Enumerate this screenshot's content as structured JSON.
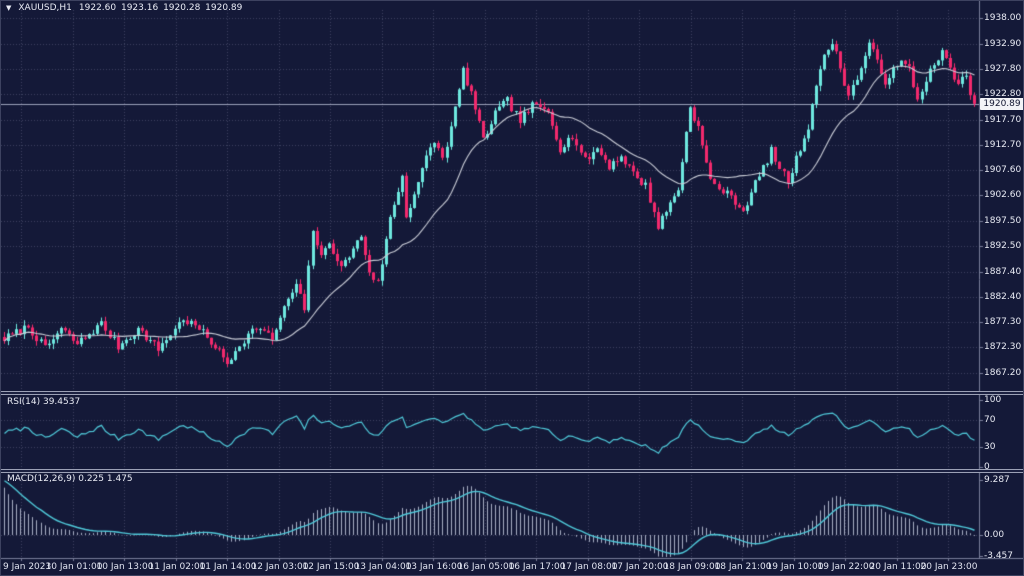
{
  "header": {
    "symbol": "XAUUSD,H1",
    "open": "1922.60",
    "high": "1923.16",
    "low": "1920.28",
    "close": "1920.89"
  },
  "indicators": {
    "rsi": {
      "label": "RSI(14)",
      "value": "39.4537",
      "period": 14,
      "levels": [
        70,
        30
      ]
    },
    "macd": {
      "label": "MACD(12,26,9)",
      "main": "0.225",
      "signal": "1.475",
      "fast": 12,
      "slow": 26,
      "signal_period": 9
    }
  },
  "axes": {
    "price_ticks": [
      "1938.00",
      "1932.90",
      "1927.80",
      "1922.80",
      "1917.70",
      "1912.70",
      "1907.60",
      "1902.60",
      "1897.50",
      "1892.50",
      "1887.40",
      "1882.40",
      "1877.30",
      "1872.30",
      "1867.20"
    ],
    "rsi_ticks": [
      "100",
      "70",
      "30",
      "0"
    ],
    "macd_ticks": [
      "9.287",
      "0.00",
      "-3.457"
    ],
    "time_labels": [
      "9 Jan 2023",
      "10 Jan 01:00",
      "10 Jan 13:00",
      "11 Jan 02:00",
      "11 Jan 14:00",
      "12 Jan 03:00",
      "12 Jan 15:00",
      "13 Jan 04:00",
      "13 Jan 16:00",
      "16 Jan 05:00",
      "16 Jan 17:00",
      "17 Jan 08:00",
      "17 Jan 20:00",
      "18 Jan 09:00",
      "18 Jan 21:00",
      "19 Jan 10:00",
      "19 Jan 22:00",
      "20 Jan 11:00",
      "20 Jan 23:00"
    ],
    "current_price": "1920.89"
  },
  "chart_data": {
    "type": "candlestick",
    "symbol": "XAUUSD",
    "timeframe": "H1",
    "title": "XAUUSD,H1 1922.60 1923.16 1920.28 1920.89",
    "num_candles": 240,
    "price_axis_range": [
      1867.2,
      1938.0
    ],
    "rsi_axis_range": [
      0,
      100
    ],
    "macd_axis_range": [
      -3.457,
      9.287
    ],
    "close_waypoints": [
      [
        0,
        1874
      ],
      [
        6,
        1876.5
      ],
      [
        10,
        1872
      ],
      [
        14,
        1876
      ],
      [
        18,
        1873
      ],
      [
        24,
        1877
      ],
      [
        28,
        1872.5
      ],
      [
        33,
        1876
      ],
      [
        38,
        1872
      ],
      [
        44,
        1878
      ],
      [
        48,
        1876
      ],
      [
        52,
        1872.5
      ],
      [
        55,
        1869
      ],
      [
        58,
        1873
      ],
      [
        62,
        1876.5
      ],
      [
        66,
        1874
      ],
      [
        70,
        1882
      ],
      [
        72,
        1884.5
      ],
      [
        74,
        1880
      ],
      [
        76,
        1896
      ],
      [
        78,
        1890
      ],
      [
        80,
        1893.5
      ],
      [
        83,
        1888
      ],
      [
        86,
        1892
      ],
      [
        88,
        1894.5
      ],
      [
        90,
        1887.5
      ],
      [
        92,
        1885
      ],
      [
        95,
        1898
      ],
      [
        98,
        1906.5
      ],
      [
        99,
        1898.5
      ],
      [
        101,
        1903
      ],
      [
        104,
        1910
      ],
      [
        106,
        1913.5
      ],
      [
        108,
        1910
      ],
      [
        110,
        1916
      ],
      [
        113,
        1927.5
      ],
      [
        115,
        1923
      ],
      [
        118,
        1913.5
      ],
      [
        121,
        1919
      ],
      [
        124,
        1921.5
      ],
      [
        127,
        1917.5
      ],
      [
        130,
        1920.5
      ],
      [
        134,
        1919.5
      ],
      [
        137,
        1912
      ],
      [
        140,
        1914.5
      ],
      [
        143,
        1909.5
      ],
      [
        146,
        1912
      ],
      [
        149,
        1908.5
      ],
      [
        152,
        1910.5
      ],
      [
        155,
        1907
      ],
      [
        158,
        1904.5
      ],
      [
        161,
        1896.5
      ],
      [
        163,
        1899.5
      ],
      [
        166,
        1904
      ],
      [
        169,
        1920.5
      ],
      [
        171,
        1916
      ],
      [
        174,
        1905.5
      ],
      [
        177,
        1903.5
      ],
      [
        180,
        1901.5
      ],
      [
        182,
        1899.5
      ],
      [
        185,
        1905
      ],
      [
        187,
        1908
      ],
      [
        189,
        1911.5
      ],
      [
        191,
        1908
      ],
      [
        193,
        1905.5
      ],
      [
        196,
        1912
      ],
      [
        198,
        1916.5
      ],
      [
        200,
        1925
      ],
      [
        202,
        1930
      ],
      [
        204,
        1933.5
      ],
      [
        206,
        1928
      ],
      [
        208,
        1922.5
      ],
      [
        210,
        1926
      ],
      [
        213,
        1932.5
      ],
      [
        215,
        1929.5
      ],
      [
        217,
        1925.5
      ],
      [
        219,
        1927.5
      ],
      [
        221,
        1929
      ],
      [
        223,
        1928
      ],
      [
        225,
        1921.5
      ],
      [
        227,
        1926
      ],
      [
        229,
        1928.5
      ],
      [
        231,
        1931
      ],
      [
        233,
        1928
      ],
      [
        235,
        1925
      ],
      [
        237,
        1926.5
      ],
      [
        238,
        1922.6
      ],
      [
        239,
        1920.89
      ]
    ],
    "last_candle": {
      "open": 1922.6,
      "high": 1923.16,
      "low": 1920.28,
      "close": 1920.89
    },
    "moving_average_period": 20,
    "rsi_current": 39.4537,
    "macd_current": {
      "main": 0.225,
      "signal": 1.475
    },
    "noise_seed": 7,
    "noise_amplitude": 1.6
  },
  "colors": {
    "background": "#141938",
    "grid": "#3d4260",
    "bull": "#6ee8df",
    "bear": "#f2296d",
    "ma_line": "#c9ccd6",
    "indicator_line": "#4fc8d8",
    "histogram": "#a7adc3",
    "axis_line": "#787d9a",
    "axis_text": "#e9ebf4",
    "current_price_line": "#9aa0b8",
    "price_tag_bg": "#f2f3f7",
    "price_tag_text": "#111530",
    "separator": "#9ca1b6"
  }
}
